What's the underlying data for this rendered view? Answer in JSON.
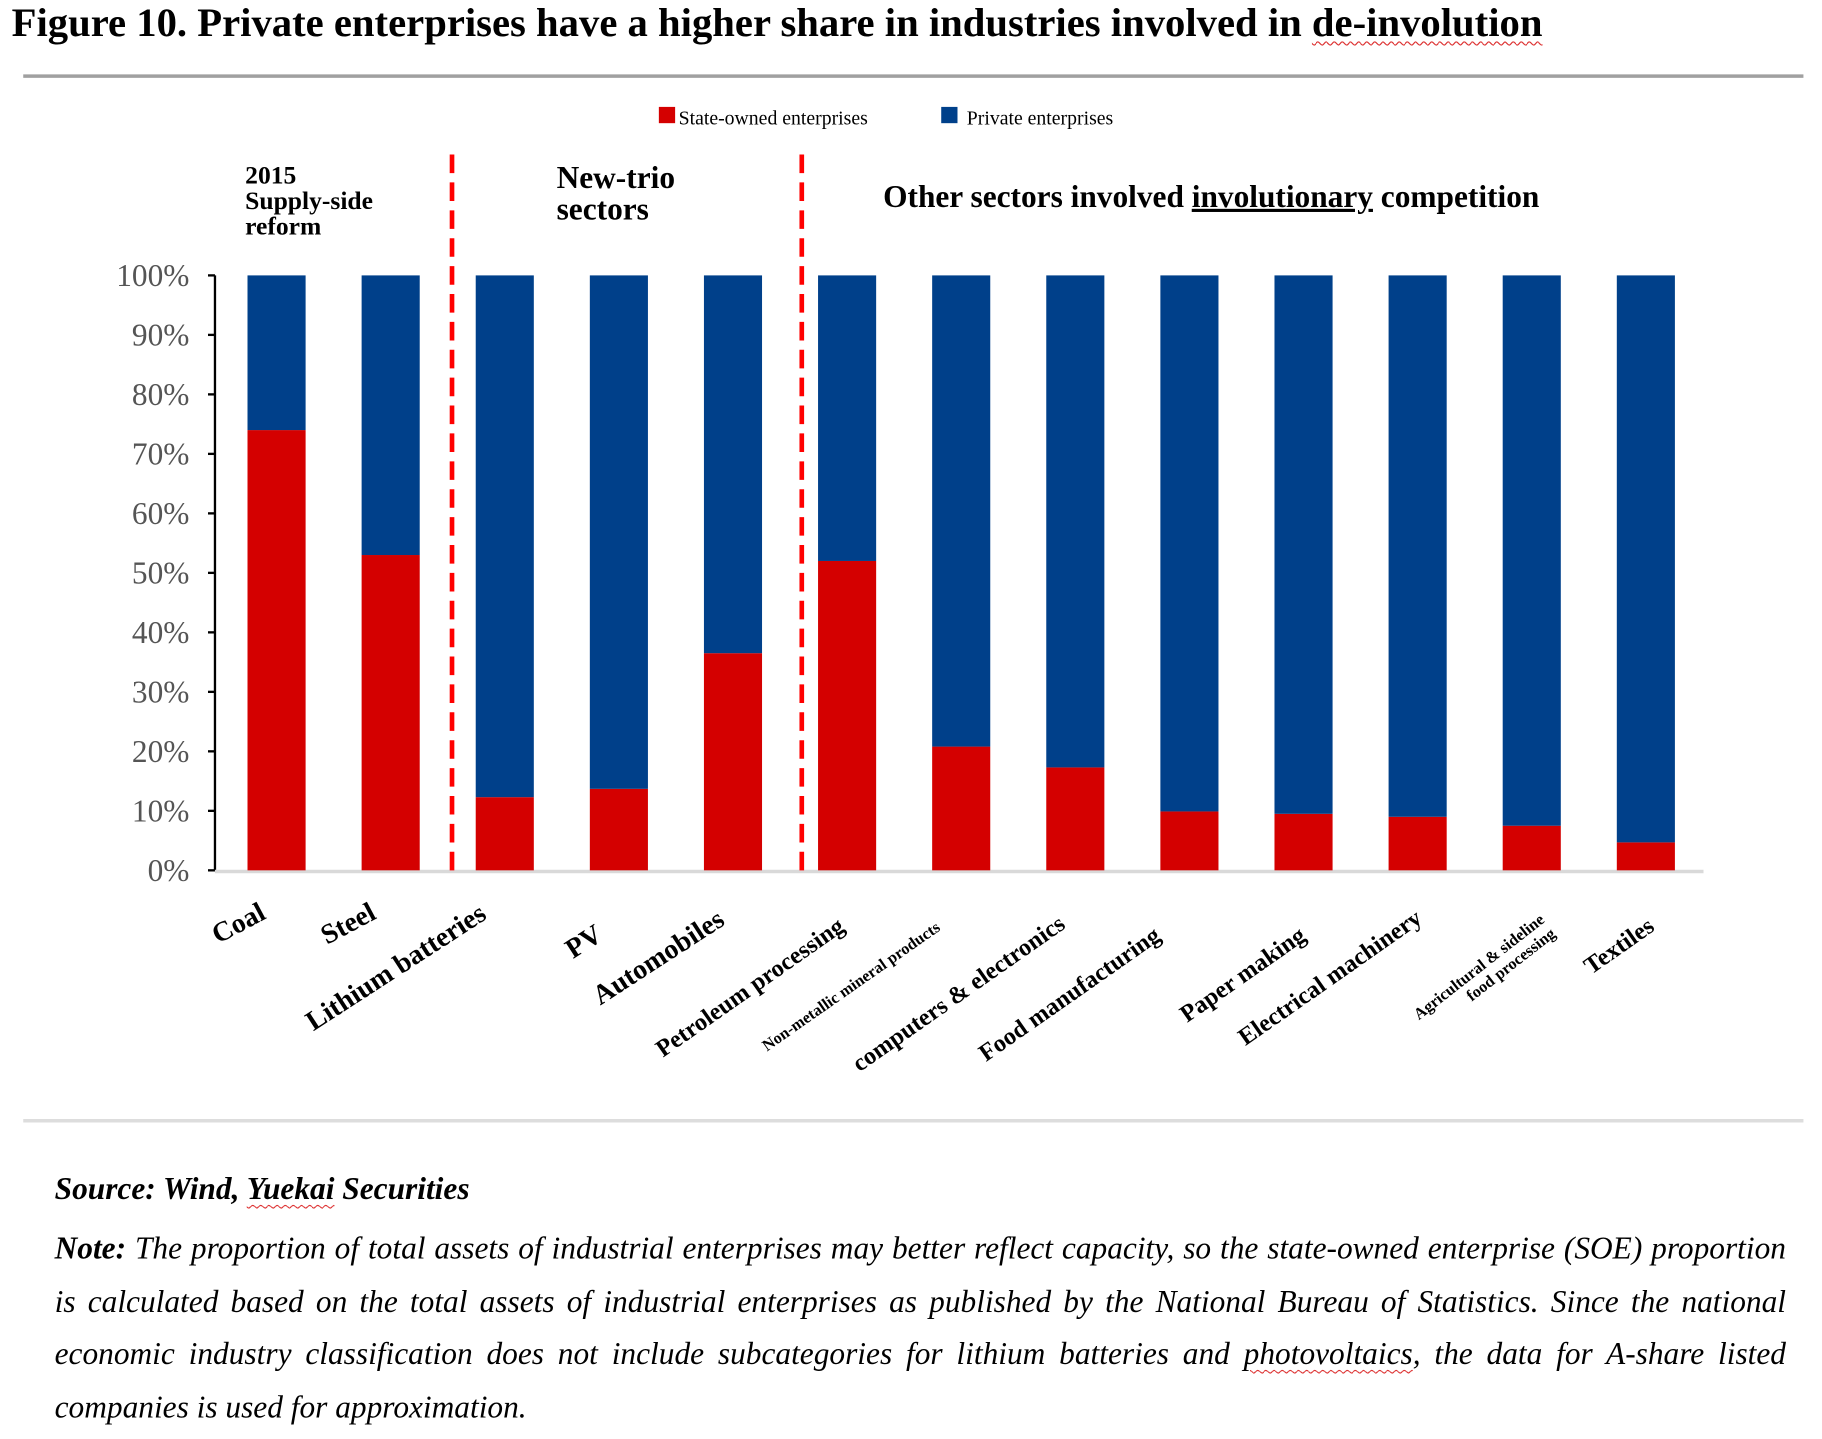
{
  "title_prefix": "Figure 10. Private enterprises have a higher share in industries involved in ",
  "title_underlined": "de-involution",
  "chart_data": {
    "type": "bar",
    "stacked": true,
    "title": "Figure 10. Private enterprises have a higher share in industries involved in de-involution",
    "categories": [
      "Coal",
      "Steel",
      "Lithium batteries",
      "PV",
      "Automobiles",
      "Petroleum processing",
      "Non-metallic mineral products",
      "computers & electronics",
      "Food manufacturing",
      "Paper making",
      "Electrical machinery",
      "Agricultural & sideline food processing",
      "Textiles"
    ],
    "series": [
      {
        "name": "State-owned enterprises",
        "color": "#d40000",
        "values": [
          74,
          53,
          12.3,
          13.7,
          36.5,
          52,
          20.8,
          17.3,
          9.9,
          9.5,
          9.0,
          7.5,
          4.7
        ]
      },
      {
        "name": "Private enterprises",
        "color": "#00408a",
        "values": [
          26,
          47,
          87.7,
          86.3,
          63.5,
          48,
          79.2,
          82.7,
          90.1,
          90.5,
          91.0,
          92.5,
          95.3
        ]
      }
    ],
    "ylim": [
      0,
      100
    ],
    "yticks": [
      "0%",
      "10%",
      "20%",
      "30%",
      "40%",
      "50%",
      "60%",
      "70%",
      "80%",
      "90%",
      "100%"
    ],
    "legend_position": "top-center",
    "group_labels": [
      {
        "lines": [
          "2015",
          "Supply-side",
          "reform"
        ]
      },
      {
        "lines": [
          "New-trio",
          "sectors"
        ]
      },
      {
        "prefix": "Other sectors involved ",
        "underlined": "involutionary",
        "suffix": " competition"
      }
    ],
    "divider_color": "#ff0000"
  },
  "source_label": "Source: Wind, ",
  "source_underlined": "Yuekai",
  "source_suffix": " Securities",
  "note_label": "Note:",
  "note_text": " The proportion of total assets of industrial enterprises may better reflect capacity, so the state-owned enterprise (SOE) proportion is calculated based on the total assets of industrial enterprises as published by the National Bureau of Statistics. Since the national economic industry classification does not include subcategories for lithium batteries and ",
  "note_underlined": "photovoltaics",
  "note_tail": ", the data for A-share listed companies is used for approximation."
}
